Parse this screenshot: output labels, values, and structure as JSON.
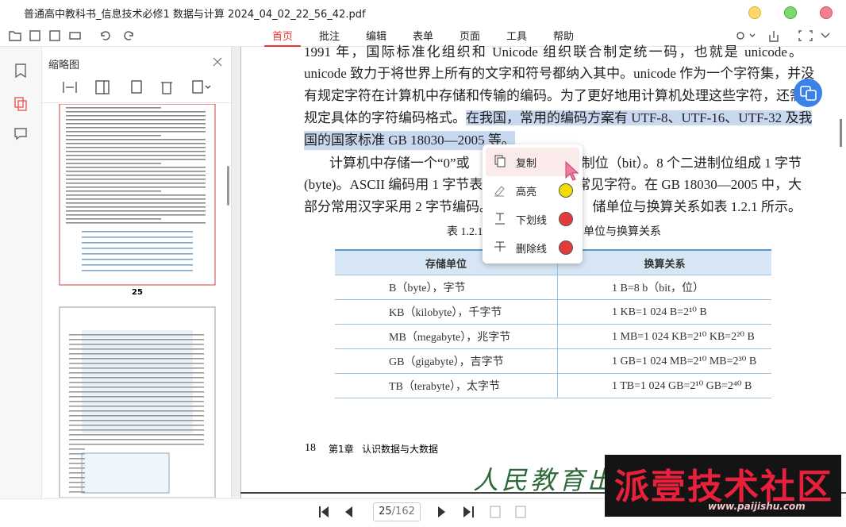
{
  "window": {
    "title": "普通高中教科书_信息技术必修1 数据与计算 2024_04_02_22_56_42.pdf"
  },
  "menu": [
    "首页",
    "批注",
    "编辑",
    "表单",
    "页面",
    "工具",
    "帮助"
  ],
  "sidebar": {
    "title": "缩略图",
    "pages": [
      "25"
    ]
  },
  "document": {
    "lines": [
      "1991 年，国际标准化组织和 Unicode 组织联合制定统一码，也就是 unicode。",
      "unicode 致力于将世界上所有的文字和符号都纳入其中。unicode 作为一个字符集，并没",
      "有规定字符在计算机中存储和传输的编码。为了更好地用计算机处理这些字符，还需"
    ],
    "line4": [
      "规定具体的字符编码格式。",
      "在我国，常用的编码方案有 UTF-8、UTF-16、UTF-32 及我"
    ],
    "line5": "国的国家标准 GB 18030—2005 等。",
    "para2": [
      [
        "计算机中存储一个“0”或",
        "进制位（bit）。8 个二进制位组成 1 字节"
      ],
      [
        "(byte)。ASCII 编码用 1 字节表示",
        "和常见字符。在 GB 18030—2005 中，大"
      ],
      [
        "部分常用汉字采用 2 字节编码。i",
        "储单位与换算关系如表 1.2.1 所示。"
      ]
    ],
    "caption": [
      "表 1.2.1",
      "单位与换算关系"
    ],
    "table": {
      "header": [
        "存储单位",
        "换算关系"
      ],
      "rows": [
        [
          "B（byte），字节",
          "1 B=8 b（bit，位）"
        ],
        [
          "KB（kilobyte），千字节",
          "1 KB=1 024 B=2¹⁰ B"
        ],
        [
          "MB（megabyte），兆字节",
          "1 MB=1 024 KB=2¹⁰ KB=2²⁰ B"
        ],
        [
          "GB（gigabyte），吉字节",
          "1 GB=1 024 MB=2¹⁰ MB=2³⁰ B"
        ],
        [
          "TB（terabyte），太字节",
          "1 TB=1 024 GB=2¹⁰  GB=2⁴⁰ B"
        ]
      ]
    },
    "footer": {
      "page": "18",
      "chapter": "第1章",
      "title": "认识数据与大数据"
    },
    "publisher": "人民教育出"
  },
  "context_menu": [
    "复制",
    "高亮",
    "下划线",
    "删除线"
  ],
  "pager": {
    "current": "25",
    "total": "/162"
  },
  "watermark": {
    "name": "派壹技术社区",
    "url": "www.paijishu.com"
  }
}
